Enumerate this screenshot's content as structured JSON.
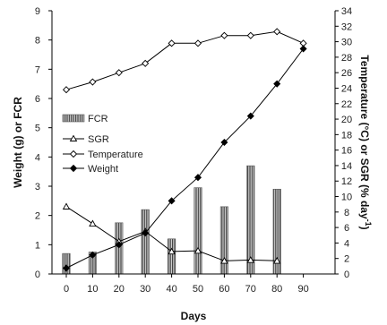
{
  "chart_data": {
    "type": "bar",
    "xlabel": "Days",
    "ylabel_left": "Weight (g) or FCR",
    "ylabel_right": "Temperature (°C) or SGR (% day",
    "ylabel_right_superscript": "-1",
    "ylabel_right_close": ")",
    "x_ticks": [
      0,
      10,
      20,
      30,
      40,
      50,
      60,
      70,
      80,
      90
    ],
    "left_axis": {
      "min": 0,
      "max": 9,
      "ticks": [
        0,
        1,
        2,
        3,
        4,
        5,
        6,
        7,
        8,
        9
      ]
    },
    "right_axis": {
      "min": 0,
      "max": 34,
      "ticks": [
        0,
        2,
        4,
        6,
        8,
        10,
        12,
        14,
        16,
        18,
        20,
        22,
        24,
        26,
        28,
        30,
        32,
        34
      ]
    },
    "legend_position": "left-middle",
    "series": [
      {
        "name": "FCR",
        "kind": "bar",
        "axis": "left",
        "color": "#777777",
        "x": [
          0,
          10,
          20,
          30,
          40,
          50,
          60,
          70,
          80
        ],
        "values": [
          0.7,
          0.75,
          1.75,
          2.2,
          1.2,
          2.95,
          2.3,
          3.7,
          2.9
        ]
      },
      {
        "name": "SGR",
        "kind": "line",
        "marker": "triangle-open",
        "axis": "right",
        "color": "#000000",
        "x": [
          0,
          10,
          20,
          30,
          40,
          50,
          60,
          70,
          80
        ],
        "values": [
          8.7,
          6.5,
          4.2,
          5.5,
          2.9,
          3.0,
          1.7,
          1.8,
          1.7
        ]
      },
      {
        "name": "Temperature",
        "kind": "line",
        "marker": "diamond-open",
        "axis": "right",
        "color": "#000000",
        "x": [
          0,
          10,
          20,
          30,
          40,
          50,
          60,
          70,
          80,
          90
        ],
        "values": [
          23.8,
          24.8,
          26.0,
          27.2,
          29.8,
          29.8,
          30.8,
          30.8,
          31.3,
          29.8
        ]
      },
      {
        "name": "Weight",
        "kind": "line",
        "marker": "diamond-filled",
        "axis": "left",
        "color": "#000000",
        "x": [
          0,
          10,
          20,
          30,
          40,
          50,
          60,
          70,
          80,
          90
        ],
        "values": [
          0.2,
          0.65,
          1.0,
          1.4,
          2.5,
          3.3,
          4.5,
          5.4,
          6.5,
          7.7
        ]
      }
    ]
  }
}
